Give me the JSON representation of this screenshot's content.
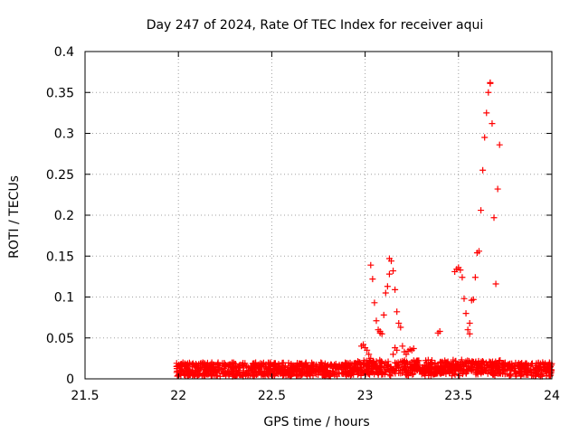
{
  "chart_data": {
    "type": "scatter",
    "title": "Day 247 of 2024, Rate Of TEC Index for receiver aqui",
    "xlabel": "GPS time / hours",
    "ylabel": "ROTI / TECUs",
    "xlim": [
      21.5,
      24
    ],
    "ylim": [
      0,
      0.4
    ],
    "x_ticks": [
      "21.5",
      "22",
      "22.5",
      "23",
      "23.5",
      "24"
    ],
    "y_ticks": [
      "0",
      "0.05",
      "0.1",
      "0.15",
      "0.2",
      "0.25",
      "0.3",
      "0.35",
      "0.4"
    ],
    "grid": true,
    "marker": "+",
    "series_color": "#ff0000",
    "background_band": {
      "x_start": 21.99,
      "x_end": 24.0,
      "y_min": 0.003,
      "y_max": 0.02,
      "count": 1400,
      "seed": 7
    },
    "points": [
      [
        22.29,
        0.003
      ],
      [
        22.75,
        0.012
      ],
      [
        22.98,
        0.04
      ],
      [
        22.99,
        0.042
      ],
      [
        23.0,
        0.038
      ],
      [
        23.01,
        0.035
      ],
      [
        23.02,
        0.03
      ],
      [
        23.03,
        0.025
      ],
      [
        23.04,
        0.02
      ],
      [
        23.05,
        0.015
      ],
      [
        23.03,
        0.139
      ],
      [
        23.04,
        0.122
      ],
      [
        23.05,
        0.093
      ],
      [
        23.06,
        0.071
      ],
      [
        23.07,
        0.06
      ],
      [
        23.08,
        0.056
      ],
      [
        23.09,
        0.055
      ],
      [
        23.08,
        0.058
      ],
      [
        23.1,
        0.078
      ],
      [
        23.11,
        0.105
      ],
      [
        23.12,
        0.113
      ],
      [
        23.13,
        0.128
      ],
      [
        23.13,
        0.147
      ],
      [
        23.14,
        0.144
      ],
      [
        23.15,
        0.132
      ],
      [
        23.16,
        0.109
      ],
      [
        23.17,
        0.082
      ],
      [
        23.18,
        0.068
      ],
      [
        23.19,
        0.063
      ],
      [
        23.15,
        0.03
      ],
      [
        23.16,
        0.038
      ],
      [
        23.17,
        0.035
      ],
      [
        23.2,
        0.04
      ],
      [
        23.21,
        0.033
      ],
      [
        23.22,
        0.03
      ],
      [
        23.23,
        0.034
      ],
      [
        23.24,
        0.036
      ],
      [
        23.25,
        0.035
      ],
      [
        23.26,
        0.037
      ],
      [
        23.39,
        0.056
      ],
      [
        23.4,
        0.058
      ],
      [
        23.48,
        0.131
      ],
      [
        23.49,
        0.134
      ],
      [
        23.5,
        0.136
      ],
      [
        23.51,
        0.133
      ],
      [
        23.52,
        0.124
      ],
      [
        23.53,
        0.098
      ],
      [
        23.54,
        0.08
      ],
      [
        23.55,
        0.06
      ],
      [
        23.56,
        0.055
      ],
      [
        23.56,
        0.068
      ],
      [
        23.57,
        0.096
      ],
      [
        23.58,
        0.097
      ],
      [
        23.59,
        0.124
      ],
      [
        23.6,
        0.154
      ],
      [
        23.61,
        0.156
      ],
      [
        23.62,
        0.206
      ],
      [
        23.63,
        0.255
      ],
      [
        23.64,
        0.295
      ],
      [
        23.65,
        0.325
      ],
      [
        23.66,
        0.35
      ],
      [
        23.67,
        0.361
      ],
      [
        23.67,
        0.362
      ],
      [
        23.68,
        0.312
      ],
      [
        23.69,
        0.197
      ],
      [
        23.7,
        0.116
      ],
      [
        23.71,
        0.232
      ],
      [
        23.72,
        0.286
      ]
    ]
  }
}
